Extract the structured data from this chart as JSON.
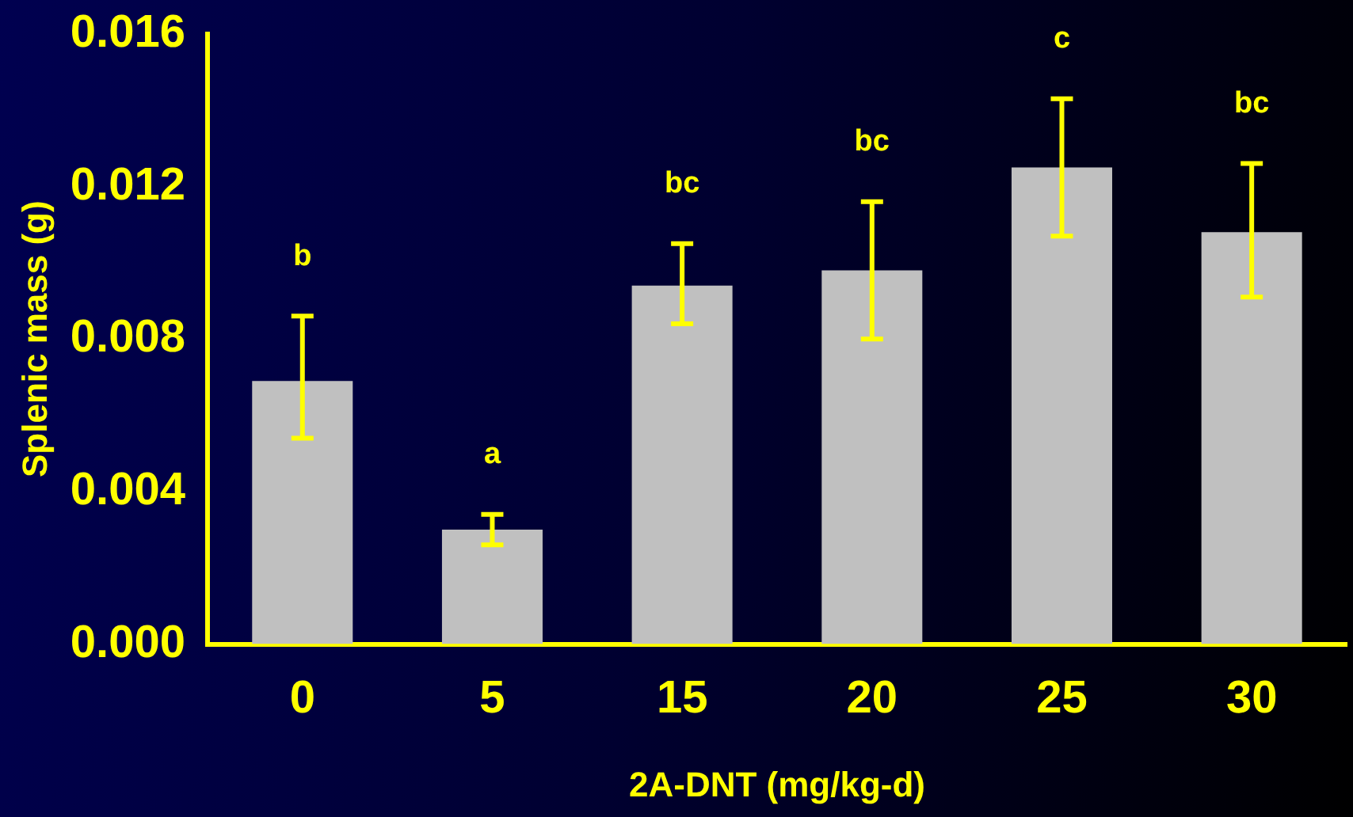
{
  "chart_data": {
    "type": "bar",
    "xlabel": "2A-DNT (mg/kg-d)",
    "ylabel": "Splenic mass (g)",
    "categories": [
      "0",
      "5",
      "15",
      "20",
      "25",
      "30"
    ],
    "values": [
      0.0069,
      0.003,
      0.0094,
      0.0098,
      0.0125,
      0.0108
    ],
    "errors": [
      [
        0.0054,
        0.0086
      ],
      [
        0.0026,
        0.0034
      ],
      [
        0.0084,
        0.0105
      ],
      [
        0.008,
        0.0116
      ],
      [
        0.0107,
        0.0143
      ],
      [
        0.0091,
        0.0126
      ]
    ],
    "color": "#c0c0c0",
    "ylim": [
      0,
      0.016
    ],
    "yticks": [
      {
        "value": 0,
        "label": "0.000"
      },
      {
        "value": 0.004,
        "label": "0.004"
      },
      {
        "value": 0.008,
        "label": "0.008"
      },
      {
        "value": 0.012,
        "label": "0.012"
      },
      {
        "value": 0.016,
        "label": "0.016"
      }
    ],
    "grid": false,
    "legend": false,
    "annotations": [
      "b",
      "a",
      "bc",
      "bc",
      "c",
      "bc"
    ]
  }
}
